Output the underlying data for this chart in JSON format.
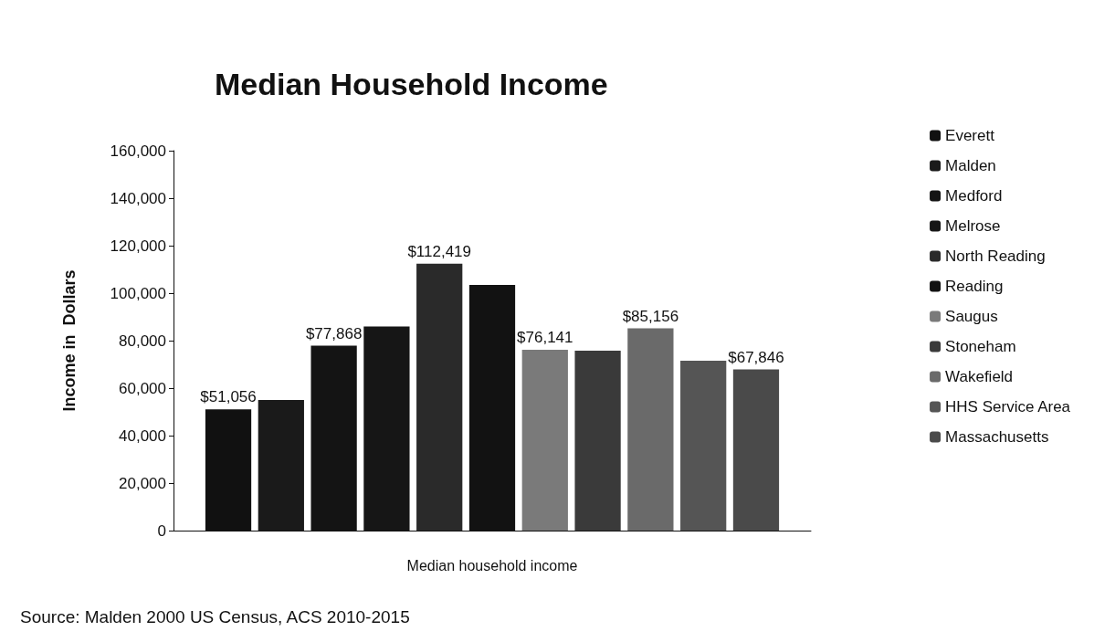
{
  "chart_data": {
    "type": "bar",
    "title": "Median Household Income",
    "ylabel": "Income in  Dollars",
    "xlabel": "Median household income",
    "categories": [
      null
    ],
    "series": [
      {
        "name": "Everett",
        "color": "#111111",
        "values": [
          51056
        ],
        "value_labels": [
          "$51,056"
        ]
      },
      {
        "name": "Malden",
        "color": "#1a1a1a",
        "values": [
          55000
        ],
        "value_labels": [
          null
        ]
      },
      {
        "name": "Medford",
        "color": "#141414",
        "values": [
          77868
        ],
        "value_labels": [
          "$77,868"
        ]
      },
      {
        "name": "Melrose",
        "color": "#161616",
        "values": [
          86000
        ],
        "value_labels": [
          null
        ]
      },
      {
        "name": "North Reading",
        "color": "#2a2a2a",
        "values": [
          112419
        ],
        "value_labels": [
          "$112,419"
        ]
      },
      {
        "name": "Reading",
        "color": "#121212",
        "values": [
          103500
        ],
        "value_labels": [
          null
        ]
      },
      {
        "name": "Saugus",
        "color": "#7a7a7a",
        "values": [
          76141
        ],
        "value_labels": [
          "$76,141"
        ]
      },
      {
        "name": "Stoneham",
        "color": "#3a3a3a",
        "values": [
          75800
        ],
        "value_labels": [
          null
        ]
      },
      {
        "name": "Wakefield",
        "color": "#6a6a6a",
        "values": [
          85156
        ],
        "value_labels": [
          "$85,156"
        ]
      },
      {
        "name": "HHS Service Area",
        "color": "#555555",
        "values": [
          71500
        ],
        "value_labels": [
          null
        ]
      },
      {
        "name": "Massachusetts",
        "color": "#4a4a4a",
        "values": [
          67846
        ],
        "value_labels": [
          "$67,846"
        ]
      }
    ],
    "ylim": [
      0,
      160000
    ],
    "yticks": [
      0,
      {
        "value": 20000,
        "label": "20,000"
      },
      {
        "value": 40000,
        "label": "40,000"
      },
      {
        "value": 60000,
        "label": "60,000"
      },
      {
        "value": 80000,
        "label": "80,000"
      },
      {
        "value": 100000,
        "label": "100,000"
      },
      {
        "value": 120000,
        "label": "120,000"
      },
      {
        "value": 140000,
        "label": "140,000"
      },
      {
        "value": 160000,
        "label": "160,000"
      }
    ],
    "grid": false,
    "legend": "right",
    "annotations": [
      "Source: Malden 2000 US Census, ACS 2010-2015"
    ]
  }
}
